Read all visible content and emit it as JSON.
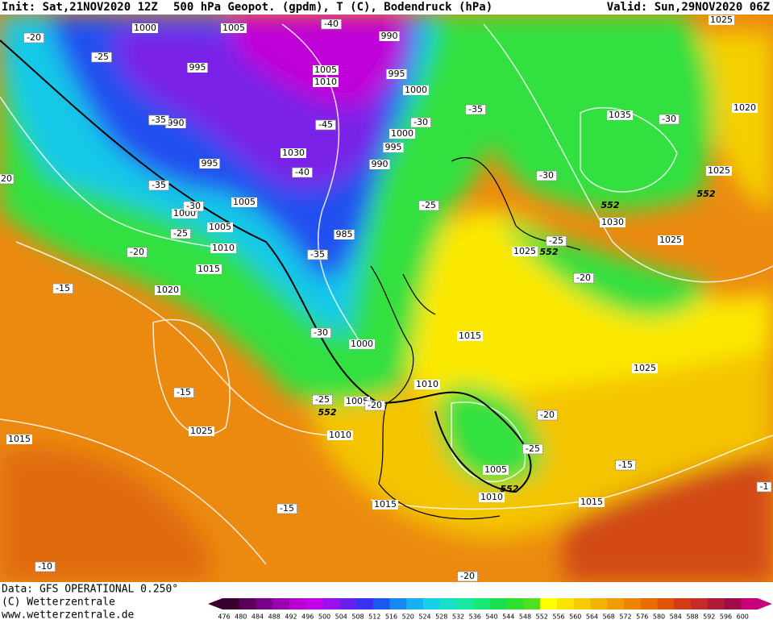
{
  "header": {
    "init": "Init: Sat,21NOV2020 12Z",
    "title": "500 hPa Geopot. (gpdm), T (C), Bodendruck (hPa)",
    "valid": "Valid: Sun,29NOV2020 06Z"
  },
  "footer": {
    "data": "Data: GFS OPERATIONAL 0.250°",
    "copyright": "(C) Wetterzentrale",
    "url": "www.wetterzentrale.de"
  },
  "contour_labels": {
    "pressure": [
      1000,
      1005,
      990,
      995,
      1005,
      1010,
      995,
      1000,
      990,
      1000,
      995,
      1030,
      995,
      990,
      1005,
      1000,
      1005,
      1010,
      1015,
      985,
      1020,
      1000,
      1005,
      1010,
      1010,
      1015,
      1025,
      1015,
      1015,
      1005,
      1010,
      1015,
      1025,
      1025,
      1025,
      1030,
      1035,
      1025,
      1020,
      1025
    ],
    "temperature": [
      -40,
      -20,
      -25,
      -35,
      -30,
      -30,
      -45,
      -35,
      -40,
      -35,
      -30,
      -25,
      -30,
      -25,
      -20,
      -35,
      -25,
      -20,
      -15,
      -30,
      -15,
      -25,
      -20,
      -20,
      -25,
      -15,
      -15,
      -10,
      -20,
      -1,
      20
    ],
    "geopotential": [
      552,
      552,
      552,
      552,
      552
    ]
  },
  "colorbar": {
    "values": [
      476,
      480,
      484,
      488,
      492,
      496,
      500,
      504,
      508,
      512,
      516,
      520,
      524,
      528,
      532,
      536,
      540,
      544,
      548,
      552,
      556,
      560,
      564,
      568,
      572,
      576,
      580,
      584,
      588,
      592,
      596,
      600
    ],
    "colors": [
      "#3a0030",
      "#58005a",
      "#780088",
      "#9a00b0",
      "#b800d0",
      "#c400e8",
      "#9a10ec",
      "#6a20ec",
      "#3a30f0",
      "#1a58f0",
      "#1888f0",
      "#18b0f0",
      "#18d0e8",
      "#18e0c8",
      "#18e8a0",
      "#18e878",
      "#18e050",
      "#30e030",
      "#50e020",
      "#ffff00",
      "#f8e400",
      "#f4cc00",
      "#f0b400",
      "#f09c00",
      "#ee8400",
      "#e86c00",
      "#e05408",
      "#d43c18",
      "#c42c28",
      "#b01c38",
      "#a00c48",
      "#c8007c"
    ]
  }
}
